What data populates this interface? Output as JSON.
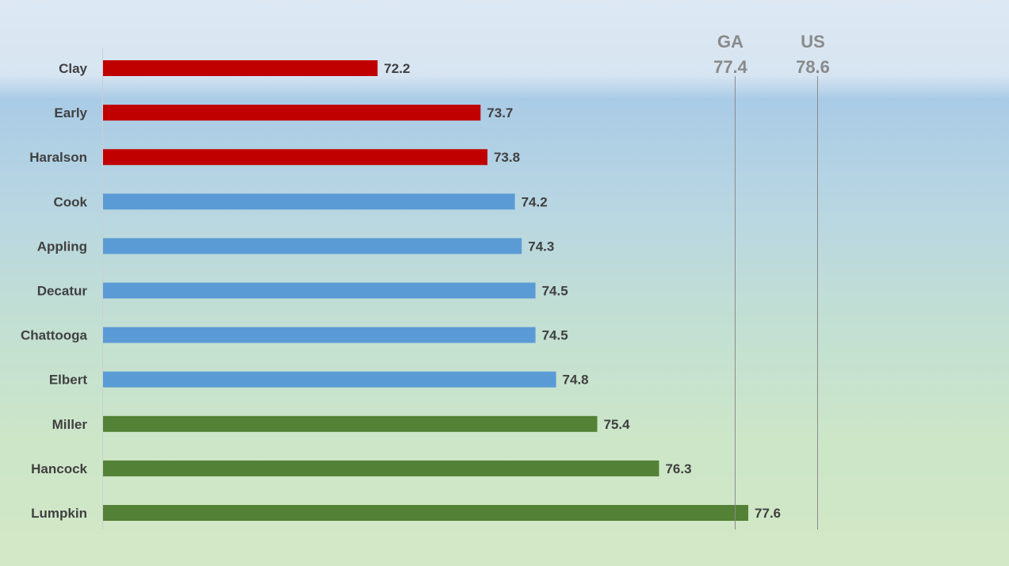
{
  "chart_data": {
    "type": "bar",
    "orientation": "horizontal",
    "categories": [
      "Clay",
      "Early",
      "Haralson",
      "Cook",
      "Appling",
      "Decatur",
      "Chattooga",
      "Elbert",
      "Miller",
      "Hancock",
      "Lumpkin"
    ],
    "values": [
      72.2,
      73.7,
      73.8,
      74.2,
      74.3,
      74.5,
      74.5,
      74.8,
      75.4,
      76.3,
      77.6
    ],
    "bar_colors": [
      "#c00000",
      "#c00000",
      "#c00000",
      "#5b9bd5",
      "#5b9bd5",
      "#5b9bd5",
      "#5b9bd5",
      "#5b9bd5",
      "#538135",
      "#538135",
      "#538135"
    ],
    "xlim": [
      68.2,
      79.0
    ],
    "grid": false,
    "legend": "none",
    "reference_lines": [
      {
        "name": "GA",
        "value": 77.4,
        "label": "77.4"
      },
      {
        "name": "US",
        "value": 78.6,
        "label": "78.6"
      }
    ],
    "colors": {
      "axis": "#d0d0d0",
      "text": "#404040",
      "reference": "#8a8a8a"
    }
  }
}
